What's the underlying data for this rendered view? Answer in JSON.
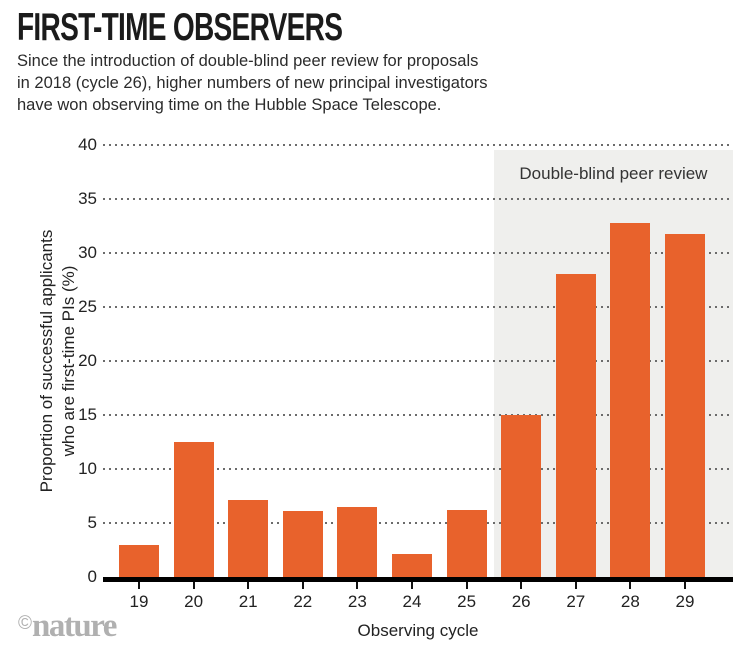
{
  "header": {
    "title": "FIRST-TIME OBSERVERS",
    "subtitle_lines": [
      "Since the introduction of double-blind peer review for proposals",
      "in 2018 (cycle 26), higher numbers of new principal investigators",
      "have won observing time on the Hubble Space Telescope."
    ]
  },
  "chart_data": {
    "type": "bar",
    "title": "FIRST-TIME OBSERVERS",
    "categories": [
      "19",
      "20",
      "21",
      "22",
      "23",
      "24",
      "25",
      "26",
      "27",
      "28",
      "29"
    ],
    "values": [
      3.0,
      12.5,
      7.1,
      6.1,
      6.5,
      2.1,
      6.2,
      15.0,
      28.1,
      32.8,
      31.8
    ],
    "xlabel": "Observing cycle",
    "ylabel": "Proportion of successful applicants who are first-time PIs (%)",
    "ylabel_lines": [
      "Proportion of successful applicants",
      "who are first-time PIs (%)"
    ],
    "ylim": [
      0,
      40
    ],
    "ytick_interval": 5,
    "grid": "horizontal-dotted",
    "legend": "none",
    "bar_color": "#E8622C",
    "axis_color": "#000000",
    "highlight_region": {
      "label": "Double-blind peer review",
      "from_category": "26",
      "to_category": "29",
      "color": "#EFEFED"
    }
  },
  "footer": {
    "copyright": "©",
    "brand": "nature"
  }
}
